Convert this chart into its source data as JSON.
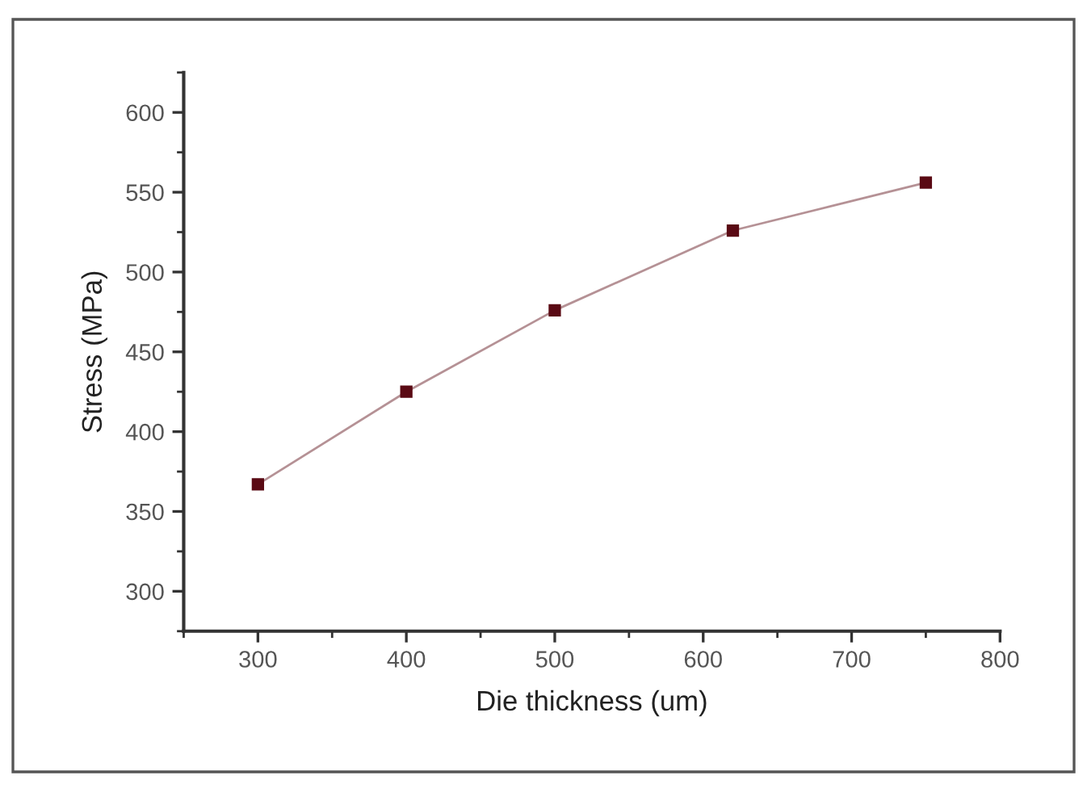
{
  "chart_data": {
    "type": "line",
    "xlabel": "Die thickness (um)",
    "ylabel": "Stress (MPa)",
    "x": [
      300,
      400,
      500,
      620,
      750
    ],
    "series": [
      {
        "color": "#5a0a14",
        "values": [
          367,
          425,
          476,
          526,
          556
        ]
      }
    ],
    "xlim": [
      250,
      800
    ],
    "xticks": [
      {
        "value": 250,
        "label": null
      },
      300,
      {
        "value": 350,
        "label": null
      },
      400,
      {
        "value": 450,
        "label": null
      },
      500,
      {
        "value": 550,
        "label": null
      },
      600,
      {
        "value": 650,
        "label": null
      },
      700,
      {
        "value": 750,
        "label": null
      },
      800
    ],
    "ylim": [
      275,
      625
    ],
    "yticks": [
      {
        "value": 275,
        "label": null
      },
      300,
      {
        "value": 325,
        "label": null
      },
      350,
      {
        "value": 375,
        "label": null
      },
      400,
      {
        "value": 425,
        "label": null
      },
      450,
      {
        "value": 475,
        "label": null
      },
      500,
      {
        "value": 525,
        "label": null
      },
      550,
      {
        "value": 575,
        "label": null
      },
      600,
      {
        "value": 625,
        "label": null
      }
    ],
    "marker": "square",
    "line_style": "solid"
  }
}
